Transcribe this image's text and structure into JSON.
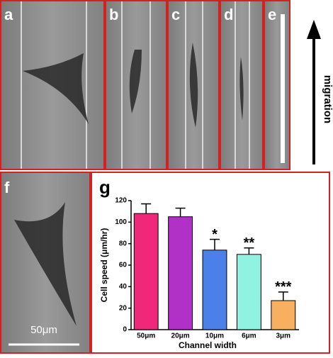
{
  "panels": [
    "a",
    "b",
    "c",
    "d",
    "e",
    "f"
  ],
  "arrow_label": "migration",
  "scale_bar": "50μm",
  "chart_data": {
    "type": "bar",
    "panel_label": "g",
    "categories": [
      "50μm",
      "20μm",
      "10μm",
      "6μm",
      "3μm"
    ],
    "values": [
      108,
      105,
      74,
      70,
      27
    ],
    "errors": [
      9,
      8,
      10,
      6,
      8
    ],
    "colors": [
      "#f0287a",
      "#b030c8",
      "#4a80e8",
      "#90f2e0",
      "#f8b060"
    ],
    "annotations": [
      {
        "x": "10μm",
        "text": "*"
      },
      {
        "x": "6μm",
        "text": "**"
      },
      {
        "x": "3μm",
        "text": "***"
      }
    ],
    "ylabel": "Cell speed (μm/hr)",
    "xlabel": "Channel width",
    "ylim": [
      0,
      120
    ],
    "yticks": [
      0,
      20,
      40,
      60,
      80,
      100,
      120
    ]
  }
}
